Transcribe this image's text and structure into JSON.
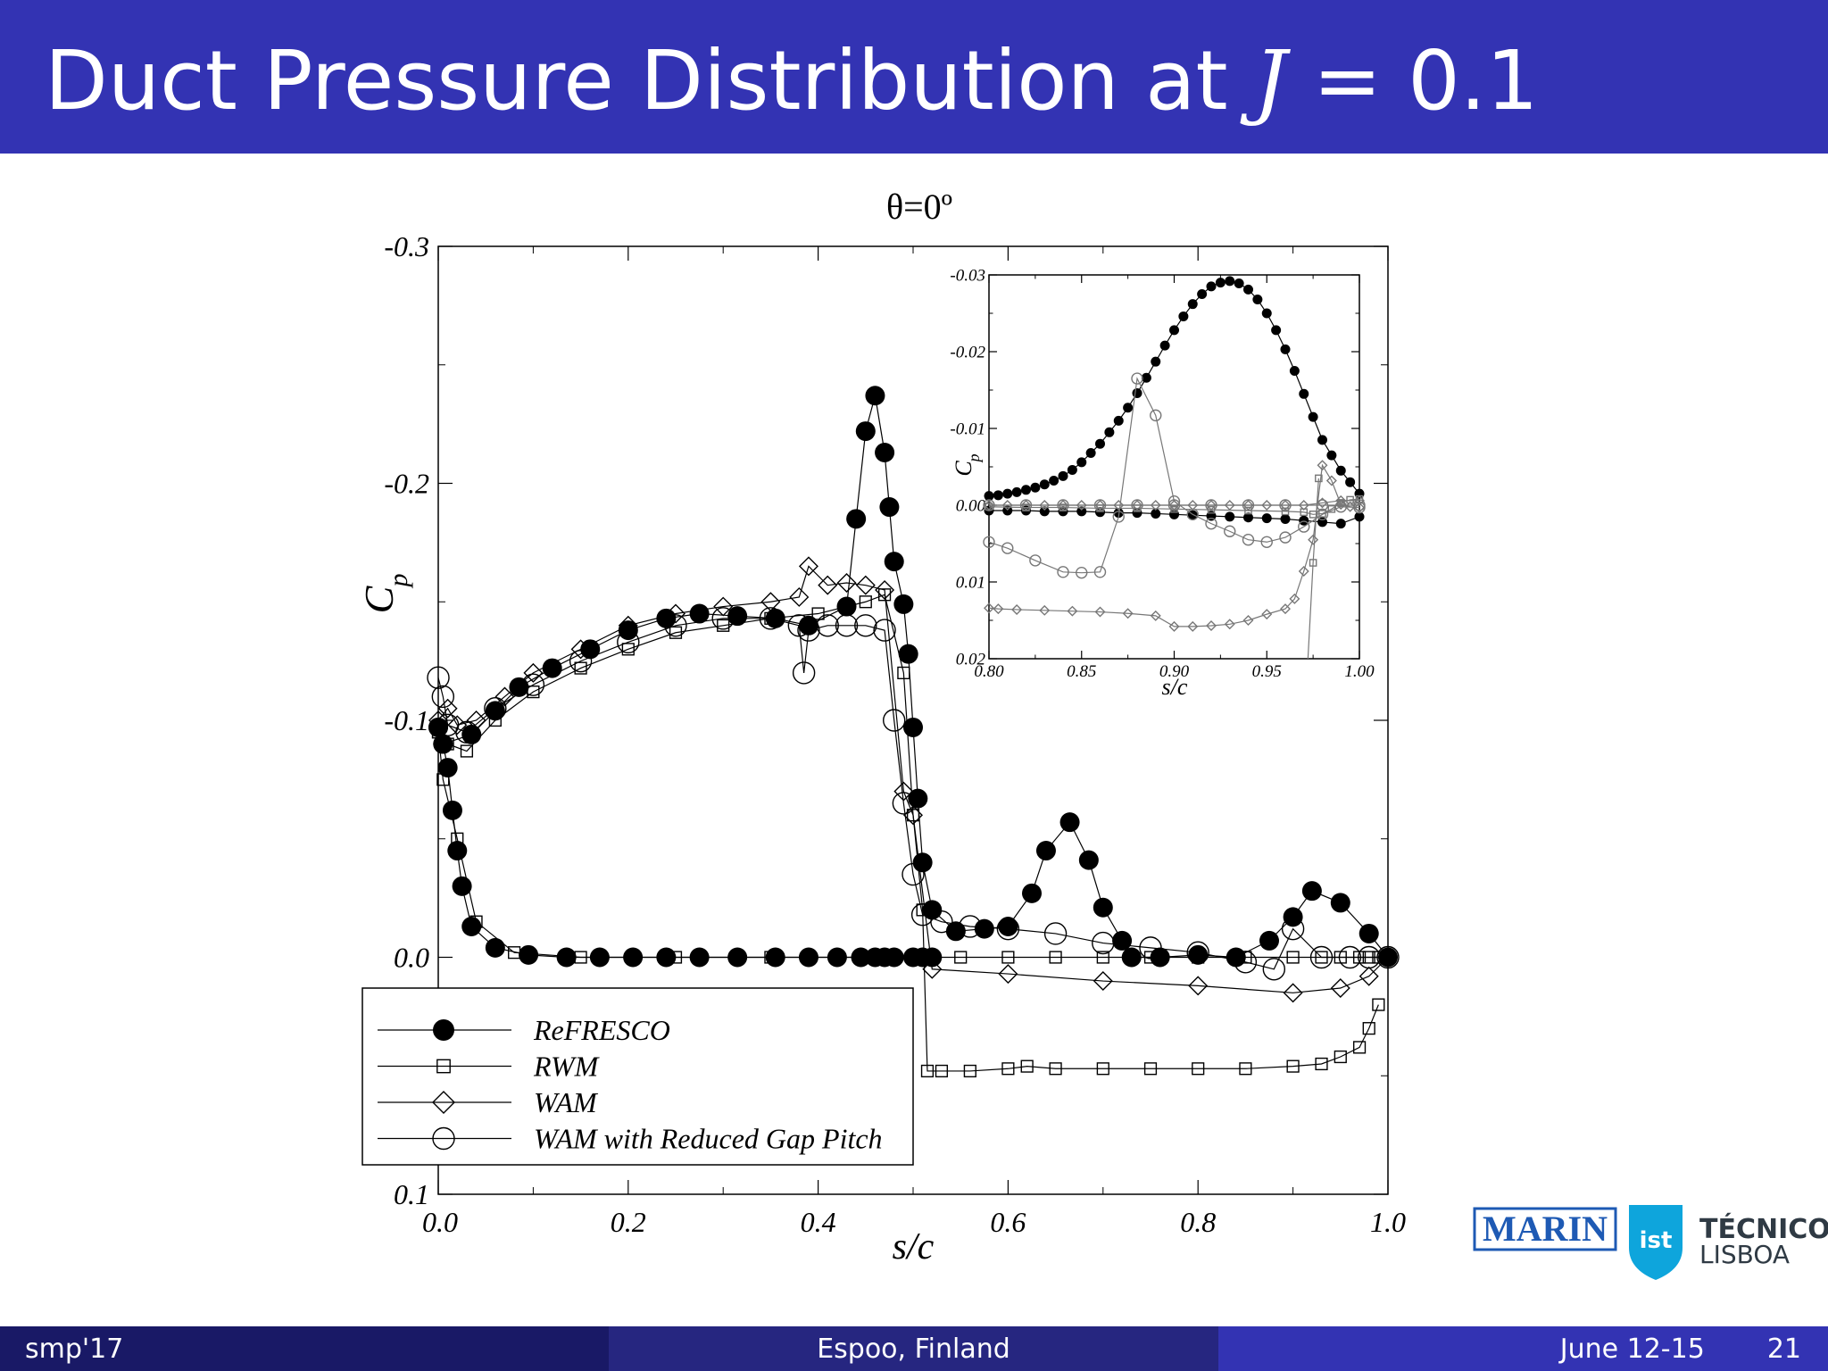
{
  "slide": {
    "title": "Duct Pressure Distribution at",
    "title_math_var": "J",
    "title_math_rest": " = 0.1",
    "colors": {
      "header": "#3333b3",
      "footer_left": "#191966",
      "footer_mid": "#262680",
      "footer_right": "#3333b3"
    }
  },
  "footer": {
    "left": "smp'17",
    "center": "Espoo, Finland",
    "date": "June 12-15",
    "page": "21"
  },
  "logos": {
    "marin": "MARIN",
    "tecnico_line1": "TÉCNICO",
    "tecnico_line2": "LISBOA",
    "ist_mark": "ist"
  },
  "chart_data": [
    {
      "type": "line",
      "title": "θ=0º",
      "xlabel": "s/c",
      "ylabel": "Cp",
      "xlim": [
        0.0,
        1.0
      ],
      "ylim": [
        0.1,
        -0.3
      ],
      "y_inverted": true,
      "xticks": [
        "0.0",
        "0.2",
        "0.4",
        "0.6",
        "0.8",
        "1.0"
      ],
      "yticks": [
        "-0.3",
        "-0.2",
        "-0.1",
        "0.0",
        "0.1"
      ],
      "legend_position": "bottom-left",
      "legend": [
        "ReFRESCO",
        "RWM",
        "WAM",
        "WAM with Reduced Gap Pitch"
      ],
      "series": [
        {
          "name": "ReFRESCO",
          "marker": "filled-circle",
          "x": [
            0.0,
            0.005,
            0.01,
            0.015,
            0.02,
            0.025,
            0.035,
            0.06,
            0.095,
            0.135,
            0.17,
            0.205,
            0.24,
            0.275,
            0.315,
            0.355,
            0.39,
            0.42,
            0.445,
            0.46,
            0.47,
            0.48,
            0.5,
            0.51,
            0.52
          ],
          "y": [
            -0.097,
            -0.09,
            -0.08,
            -0.062,
            -0.045,
            -0.03,
            -0.013,
            -0.004,
            -0.001,
            0,
            0,
            0,
            0,
            0,
            0,
            0,
            0,
            0,
            0,
            0,
            0,
            0,
            0,
            0,
            0
          ]
        },
        {
          "name": "ReFRESCO",
          "marker": "filled-circle",
          "x": [
            0.0,
            0.005,
            0.035,
            0.06,
            0.085,
            0.12,
            0.16,
            0.2,
            0.24,
            0.275,
            0.315,
            0.355,
            0.39,
            0.43,
            0.44,
            0.45,
            0.46,
            0.47,
            0.475,
            0.48,
            0.49,
            0.495,
            0.5,
            0.505,
            0.51,
            0.52,
            0.545,
            0.575,
            0.6,
            0.625,
            0.64,
            0.665,
            0.685,
            0.7,
            0.72,
            0.73,
            0.76,
            0.8,
            0.84,
            0.875,
            0.9,
            0.92,
            0.95,
            0.98,
            1.0
          ],
          "y": [
            -0.097,
            -0.09,
            -0.094,
            -0.104,
            -0.114,
            -0.122,
            -0.13,
            -0.138,
            -0.143,
            -0.145,
            -0.144,
            -0.143,
            -0.14,
            -0.148,
            -0.185,
            -0.222,
            -0.237,
            -0.213,
            -0.19,
            -0.167,
            -0.149,
            -0.128,
            -0.097,
            -0.067,
            -0.04,
            -0.02,
            -0.011,
            -0.012,
            -0.013,
            -0.027,
            -0.045,
            -0.057,
            -0.041,
            -0.021,
            -0.007,
            0,
            0,
            -0.001,
            0,
            -0.007,
            -0.017,
            -0.028,
            -0.023,
            -0.01,
            0
          ]
        },
        {
          "name": "RWM",
          "marker": "open-square",
          "x": [
            0.0,
            0.005,
            0.02,
            0.04,
            0.08,
            0.15,
            0.25,
            0.35,
            0.45,
            0.5,
            0.51,
            0.52,
            0.55,
            0.6,
            0.65,
            0.7,
            0.75,
            0.8,
            0.85,
            0.9,
            0.93,
            0.95,
            0.97,
            0.98,
            0.99
          ],
          "y": [
            -0.095,
            -0.075,
            -0.05,
            -0.015,
            -0.002,
            0,
            0,
            0,
            0,
            0,
            0,
            0,
            0,
            0,
            0,
            0,
            0,
            0,
            0,
            0,
            0,
            0,
            0,
            0,
            0
          ]
        },
        {
          "name": "RWM",
          "marker": "open-square",
          "x": [
            0.0,
            0.01,
            0.03,
            0.06,
            0.1,
            0.15,
            0.2,
            0.25,
            0.3,
            0.35,
            0.4,
            0.45,
            0.47,
            0.49,
            0.5,
            0.51,
            0.515,
            0.53,
            0.56,
            0.6,
            0.62,
            0.65,
            0.7,
            0.75,
            0.8,
            0.85,
            0.9,
            0.93,
            0.95,
            0.97,
            0.98,
            0.99
          ],
          "y": [
            -0.095,
            -0.09,
            -0.087,
            -0.1,
            -0.112,
            -0.122,
            -0.13,
            -0.137,
            -0.14,
            -0.143,
            -0.145,
            -0.15,
            -0.153,
            -0.12,
            -0.06,
            -0.02,
            0.048,
            0.048,
            0.048,
            0.047,
            0.046,
            0.047,
            0.047,
            0.047,
            0.047,
            0.047,
            0.046,
            0.045,
            0.042,
            0.038,
            0.03,
            0.02
          ]
        },
        {
          "name": "WAM",
          "marker": "open-diamond",
          "x": [
            0.0,
            0.01,
            0.02,
            0.04,
            0.07,
            0.1,
            0.15,
            0.2,
            0.25,
            0.3,
            0.35,
            0.38,
            0.39,
            0.41,
            0.43,
            0.45,
            0.47,
            0.49,
            0.5,
            0.52,
            0.6,
            0.7,
            0.8,
            0.9,
            0.95,
            0.98,
            1.0
          ],
          "y": [
            -0.1,
            -0.105,
            -0.098,
            -0.1,
            -0.11,
            -0.12,
            -0.13,
            -0.14,
            -0.145,
            -0.148,
            -0.15,
            -0.152,
            -0.165,
            -0.157,
            -0.158,
            -0.157,
            -0.155,
            -0.07,
            -0.06,
            0.005,
            0.007,
            0.01,
            0.012,
            0.015,
            0.013,
            0.008,
            0.0
          ]
        },
        {
          "name": "WAM with Reduced Gap Pitch",
          "marker": "open-circle",
          "x": [
            0.0,
            0.005,
            0.01,
            0.03,
            0.06,
            0.1,
            0.15,
            0.2,
            0.25,
            0.3,
            0.35,
            0.38,
            0.385,
            0.39,
            0.41,
            0.43,
            0.45,
            0.47,
            0.48,
            0.49,
            0.5,
            0.51,
            0.53,
            0.56,
            0.6,
            0.65,
            0.7,
            0.75,
            0.8,
            0.85,
            0.88,
            0.9,
            0.93,
            0.96,
            0.98,
            1.0
          ],
          "y": [
            -0.118,
            -0.11,
            -0.098,
            -0.095,
            -0.105,
            -0.115,
            -0.125,
            -0.133,
            -0.14,
            -0.143,
            -0.143,
            -0.14,
            -0.12,
            -0.138,
            -0.14,
            -0.14,
            -0.14,
            -0.138,
            -0.1,
            -0.065,
            -0.035,
            -0.018,
            -0.015,
            -0.013,
            -0.012,
            -0.01,
            -0.006,
            -0.004,
            -0.002,
            0.002,
            0.005,
            -0.012,
            0.0,
            0.0,
            0.0,
            0.0
          ]
        }
      ]
    },
    {
      "type": "line",
      "title": "",
      "xlabel": "s/c",
      "ylabel": "Cp",
      "xlim": [
        0.8,
        1.0
      ],
      "ylim": [
        0.02,
        -0.03
      ],
      "y_inverted": true,
      "xticks": [
        "0.80",
        "0.85",
        "0.90",
        "0.95",
        "1.00"
      ],
      "yticks": [
        "-0.03",
        "-0.02",
        "-0.01",
        "0.00",
        "0.01",
        "0.02"
      ],
      "series": [
        {
          "name": "ReFRESCO",
          "marker": "filled-circle",
          "x": [
            0.8,
            0.805,
            0.81,
            0.815,
            0.82,
            0.825,
            0.83,
            0.835,
            0.84,
            0.845,
            0.85,
            0.855,
            0.86,
            0.865,
            0.87,
            0.875,
            0.88,
            0.885,
            0.89,
            0.895,
            0.9,
            0.905,
            0.91,
            0.915,
            0.92,
            0.925,
            0.93,
            0.935,
            0.94,
            0.945,
            0.95,
            0.955,
            0.96,
            0.965,
            0.97,
            0.975,
            0.98,
            0.985,
            0.99,
            0.995,
            1.0
          ],
          "y": [
            -0.0012,
            -0.0013,
            -0.0015,
            -0.0017,
            -0.002,
            -0.0023,
            -0.0027,
            -0.0032,
            -0.0038,
            -0.0046,
            -0.0056,
            -0.0068,
            -0.008,
            -0.0095,
            -0.011,
            -0.0127,
            -0.0146,
            -0.0166,
            -0.0187,
            -0.0208,
            -0.0228,
            -0.0246,
            -0.0262,
            -0.0275,
            -0.0285,
            -0.029,
            -0.0292,
            -0.0289,
            -0.0281,
            -0.0268,
            -0.025,
            -0.0228,
            -0.0203,
            -0.0175,
            -0.0145,
            -0.0115,
            -0.0085,
            -0.0065,
            -0.0045,
            -0.003,
            -0.0015
          ]
        },
        {
          "name": "ReFRESCO",
          "marker": "filled-circle",
          "x": [
            0.8,
            0.81,
            0.82,
            0.83,
            0.84,
            0.85,
            0.86,
            0.87,
            0.88,
            0.89,
            0.9,
            0.91,
            0.92,
            0.93,
            0.94,
            0.95,
            0.96,
            0.97,
            0.98,
            0.99,
            1.0
          ],
          "y": [
            0.0007,
            0.0007,
            0.0007,
            0.0008,
            0.0008,
            0.0008,
            0.0009,
            0.001,
            0.001,
            0.0011,
            0.0012,
            0.0013,
            0.0014,
            0.0015,
            0.0016,
            0.0017,
            0.0018,
            0.002,
            0.0022,
            0.0024,
            0.0015
          ]
        },
        {
          "name": "RWM",
          "marker": "open-square",
          "x": [
            0.8,
            0.82,
            0.84,
            0.86,
            0.88,
            0.9,
            0.92,
            0.94,
            0.96,
            0.97,
            0.975,
            0.98,
            0.985,
            0.99,
            0.995,
            1.0
          ],
          "y": [
            0.0002,
            0.0003,
            0.0003,
            0.0004,
            0.0004,
            0.0005,
            0.0006,
            0.0007,
            0.0008,
            0.0009,
            0.0012,
            0.0011,
            0.0005,
            -0.0003,
            -0.0007,
            -0.0008
          ]
        },
        {
          "name": "RWM",
          "marker": "open-square",
          "x": [
            0.97,
            0.975,
            0.978
          ],
          "y": [
            0.03,
            0.0075,
            -0.0035
          ]
        },
        {
          "name": "WAM",
          "marker": "open-diamond",
          "x": [
            0.8,
            0.805,
            0.815,
            0.83,
            0.845,
            0.86,
            0.875,
            0.89,
            0.9,
            0.91,
            0.92,
            0.93,
            0.94,
            0.95,
            0.96,
            0.965,
            0.97,
            0.975,
            0.98,
            0.985,
            0.99,
            0.995,
            1.0
          ],
          "y": [
            0.0134,
            0.0135,
            0.0136,
            0.0137,
            0.0138,
            0.0139,
            0.0141,
            0.0144,
            0.0158,
            0.0158,
            0.0157,
            0.0155,
            0.015,
            0.0142,
            0.0135,
            0.0122,
            0.0086,
            0.0045,
            -0.0052,
            -0.0032,
            -0.0001,
            0.0002,
            0.0003
          ]
        },
        {
          "name": "WAM",
          "marker": "open-diamond",
          "x": [
            0.8,
            0.81,
            0.82,
            0.83,
            0.84,
            0.85,
            0.86,
            0.87,
            0.88,
            0.89,
            0.9,
            0.91,
            0.92,
            0.93,
            0.94,
            0.95,
            0.96,
            0.97,
            0.98,
            0.99,
            1.0
          ],
          "y": [
            0.0,
            0.0,
            0.0,
            0.0,
            0.0,
            0.0,
            0.0,
            0.0,
            0.0,
            0.0,
            0.0,
            0.0,
            0.0,
            0.0,
            0.0,
            0.0,
            0.0,
            0.0,
            -0.0003,
            -0.0006,
            -0.0006
          ]
        },
        {
          "name": "WAM with Reduced Gap Pitch",
          "marker": "open-circle",
          "x": [
            0.8,
            0.81,
            0.825,
            0.84,
            0.85,
            0.86,
            0.87,
            0.88,
            0.89,
            0.9,
            0.91,
            0.92,
            0.93,
            0.94,
            0.95,
            0.96,
            0.97,
            0.98,
            0.99,
            1.0
          ],
          "y": [
            0.0048,
            0.0056,
            0.0072,
            0.0087,
            0.0088,
            0.0087,
            0.0015,
            -0.0165,
            -0.0117,
            -0.0005,
            0.0012,
            0.0024,
            0.0034,
            0.0045,
            0.0048,
            0.0042,
            0.0028,
            0.0012,
            0.0002,
            0.0003
          ]
        },
        {
          "name": "WAM with Reduced Gap Pitch",
          "marker": "open-circle",
          "x": [
            0.8,
            0.82,
            0.84,
            0.86,
            0.88,
            0.9,
            0.92,
            0.94,
            0.96,
            0.98,
            1.0
          ],
          "y": [
            0.0,
            0.0,
            0.0,
            0.0,
            0.0,
            0.0,
            0.0,
            0.0,
            0.0,
            0.0,
            0.0
          ]
        }
      ]
    }
  ]
}
